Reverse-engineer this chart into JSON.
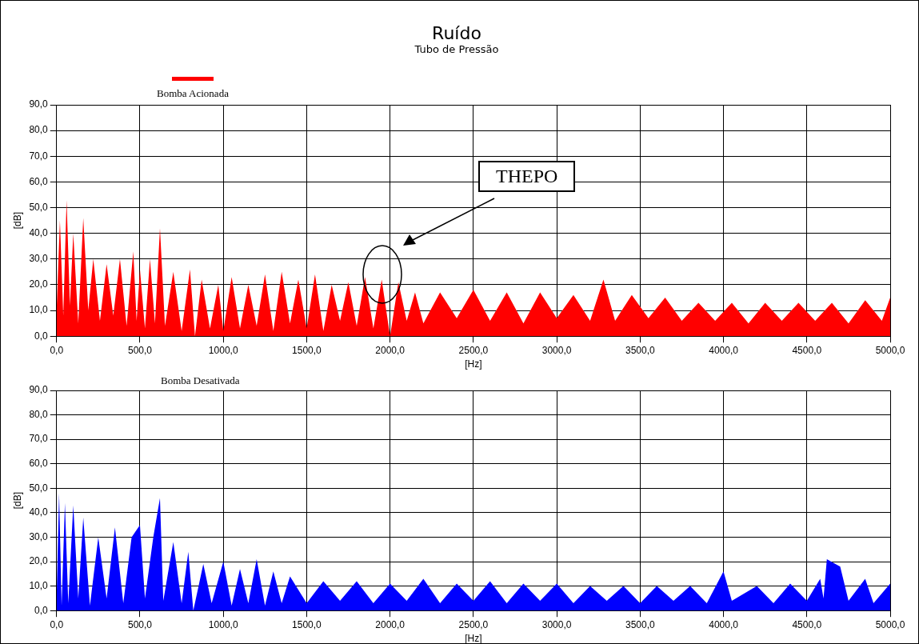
{
  "chart_data": [
    {
      "type": "area",
      "title": "Ruído",
      "subtitle": "Tubo de Pressão",
      "xlabel": "[Hz]",
      "ylabel": "[dB]",
      "legend": "top left",
      "grid": true,
      "marker": "none",
      "xlim": [
        0,
        5000
      ],
      "xticks": [
        {
          "value": 0,
          "label": "0,0"
        },
        {
          "value": 500,
          "label": "500,0"
        },
        {
          "value": 1000,
          "label": "1000,0"
        },
        {
          "value": 1500,
          "label": "1500,0"
        },
        {
          "value": 2000,
          "label": "2000,0"
        },
        {
          "value": 2500,
          "label": "2500,0"
        },
        {
          "value": 3000,
          "label": "3000,0"
        },
        {
          "value": 3500,
          "label": "3500,0"
        },
        {
          "value": 4000,
          "label": "4000,0"
        },
        {
          "value": 4500,
          "label": "4500,0"
        },
        {
          "value": 5000,
          "label": "5000,0"
        }
      ],
      "ylim": [
        0,
        90
      ],
      "yticks": [
        {
          "value": 0,
          "label": "0,0"
        },
        {
          "value": 10,
          "label": "10,0"
        },
        {
          "value": 20,
          "label": "20,0"
        },
        {
          "value": 30,
          "label": "30,0"
        },
        {
          "value": 40,
          "label": "40,0"
        },
        {
          "value": 50,
          "label": "50,0"
        },
        {
          "value": 60,
          "label": "60,0"
        },
        {
          "value": 70,
          "label": "70,0"
        },
        {
          "value": 80,
          "label": "80,0"
        },
        {
          "value": 90,
          "label": "90,0"
        }
      ],
      "annotations": [
        "THEPO"
      ],
      "series": [
        {
          "name": "Bomba Acionada",
          "color": "#ff0000",
          "x": [
            0,
            20,
            40,
            60,
            80,
            100,
            130,
            160,
            190,
            220,
            260,
            300,
            340,
            380,
            420,
            460,
            480,
            500,
            530,
            560,
            590,
            620,
            650,
            700,
            750,
            800,
            830,
            870,
            920,
            970,
            1000,
            1050,
            1100,
            1150,
            1200,
            1250,
            1300,
            1350,
            1400,
            1450,
            1500,
            1550,
            1600,
            1650,
            1700,
            1750,
            1800,
            1850,
            1900,
            1950,
            2000,
            2050,
            2100,
            2150,
            2200,
            2300,
            2400,
            2500,
            2600,
            2700,
            2800,
            2900,
            3000,
            3100,
            3200,
            3280,
            3350,
            3450,
            3550,
            3650,
            3750,
            3850,
            3950,
            4050,
            4150,
            4250,
            4350,
            4450,
            4550,
            4650,
            4750,
            4850,
            4950,
            5000
          ],
          "values": [
            10,
            45,
            8,
            53,
            12,
            40,
            5,
            46,
            10,
            30,
            6,
            28,
            8,
            30,
            4,
            33,
            6,
            26,
            3,
            30,
            5,
            42,
            4,
            25,
            2,
            26,
            0,
            22,
            3,
            20,
            2,
            23,
            3,
            20,
            4,
            24,
            2,
            25,
            5,
            22,
            3,
            24,
            2,
            20,
            6,
            21,
            4,
            23,
            3,
            22,
            0,
            21,
            6,
            17,
            5,
            17,
            7,
            18,
            6,
            17,
            5,
            17,
            7,
            16,
            6,
            22,
            6,
            16,
            7,
            15,
            6,
            13,
            6,
            13,
            5,
            13,
            6,
            13,
            6,
            13,
            5,
            14,
            6,
            15
          ]
        }
      ]
    },
    {
      "type": "area",
      "title": "Bomba Desativada",
      "xlabel": "[Hz]",
      "ylabel": "[dB]",
      "grid": true,
      "marker": "none",
      "xlim": [
        0,
        5000
      ],
      "xticks": [
        {
          "value": 0,
          "label": "0,0"
        },
        {
          "value": 500,
          "label": "500,0"
        },
        {
          "value": 1000,
          "label": "1000,0"
        },
        {
          "value": 1500,
          "label": "1500,0"
        },
        {
          "value": 2000,
          "label": "2000,0"
        },
        {
          "value": 2500,
          "label": "2500,0"
        },
        {
          "value": 3000,
          "label": "3000,0"
        },
        {
          "value": 3500,
          "label": "3500,0"
        },
        {
          "value": 4000,
          "label": "4000,0"
        },
        {
          "value": 4500,
          "label": "4500,0"
        },
        {
          "value": 5000,
          "label": "5000,0"
        }
      ],
      "ylim": [
        0,
        90
      ],
      "yticks": [
        {
          "value": 0,
          "label": "0,0"
        },
        {
          "value": 10,
          "label": "10,0"
        },
        {
          "value": 20,
          "label": "20,0"
        },
        {
          "value": 30,
          "label": "30,0"
        },
        {
          "value": 40,
          "label": "40,0"
        },
        {
          "value": 50,
          "label": "50,0"
        },
        {
          "value": 60,
          "label": "60,0"
        },
        {
          "value": 70,
          "label": "70,0"
        },
        {
          "value": 80,
          "label": "80,0"
        },
        {
          "value": 90,
          "label": "90,0"
        }
      ],
      "series": [
        {
          "color": "#0000ff",
          "x": [
            0,
            15,
            30,
            50,
            70,
            100,
            130,
            160,
            200,
            250,
            300,
            350,
            400,
            450,
            500,
            530,
            580,
            620,
            640,
            700,
            750,
            790,
            820,
            880,
            930,
            1000,
            1050,
            1100,
            1150,
            1200,
            1250,
            1300,
            1350,
            1400,
            1500,
            1600,
            1700,
            1800,
            1900,
            2000,
            2100,
            2200,
            2300,
            2400,
            2500,
            2600,
            2700,
            2800,
            2900,
            3000,
            3100,
            3200,
            3300,
            3400,
            3500,
            3600,
            3700,
            3800,
            3900,
            4000,
            4050,
            4200,
            4300,
            4400,
            4500,
            4580,
            4600,
            4620,
            4700,
            4750,
            4850,
            4900,
            5000
          ],
          "values": [
            5,
            48,
            2,
            44,
            3,
            43,
            5,
            38,
            2,
            30,
            5,
            34,
            3,
            30,
            35,
            5,
            30,
            46,
            4,
            28,
            3,
            24,
            0,
            19,
            3,
            20,
            2,
            17,
            3,
            21,
            2,
            16,
            3,
            14,
            3,
            12,
            4,
            12,
            3,
            11,
            4,
            13,
            3,
            11,
            4,
            12,
            3,
            11,
            4,
            11,
            3,
            10,
            4,
            10,
            3,
            10,
            4,
            10,
            3,
            16,
            4,
            10,
            3,
            11,
            4,
            13,
            5,
            21,
            18,
            4,
            13,
            3,
            11
          ]
        }
      ]
    }
  ]
}
